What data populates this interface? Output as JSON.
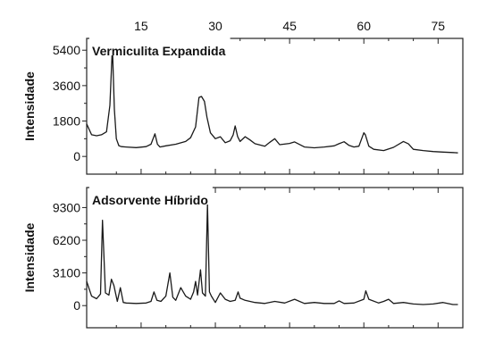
{
  "chart_data": [
    {
      "type": "line",
      "title": "Vermiculita Expandida",
      "xlabel": "",
      "ylabel": "Intensidade",
      "xlim": [
        4,
        80
      ],
      "ylim": [
        -900,
        6000
      ],
      "x_ticks": [
        "15",
        "30",
        "45",
        "60",
        "75"
      ],
      "y_ticks": [
        "0",
        "1800",
        "3600",
        "5400"
      ],
      "series": [
        {
          "x": [
            4,
            5,
            6,
            7,
            8,
            8.7,
            9.2,
            9.6,
            10.0,
            10.5,
            11,
            12,
            14,
            16,
            17,
            17.8,
            18.3,
            18.8,
            20,
            22,
            24,
            25,
            26,
            26.7,
            27.2,
            27.8,
            28.3,
            29,
            30,
            31,
            32,
            33,
            33.6,
            34,
            34.5,
            35,
            36,
            37,
            38,
            40,
            41,
            42,
            43,
            45,
            46,
            48,
            50,
            52,
            54,
            55,
            56,
            57,
            58,
            59,
            60,
            60.3,
            61,
            62,
            64,
            66,
            68,
            69,
            70,
            72,
            74,
            76,
            78,
            79
          ],
          "y": [
            1650,
            1100,
            1050,
            1100,
            1250,
            2600,
            5600,
            2400,
            900,
            550,
            500,
            480,
            450,
            500,
            620,
            1150,
            620,
            480,
            540,
            620,
            760,
            950,
            1500,
            3000,
            3050,
            2800,
            2000,
            1200,
            900,
            1000,
            700,
            800,
            1100,
            1550,
            1000,
            760,
            1000,
            840,
            650,
            520,
            720,
            900,
            600,
            660,
            740,
            480,
            440,
            480,
            540,
            650,
            750,
            560,
            480,
            520,
            1200,
            1100,
            520,
            360,
            300,
            460,
            760,
            640,
            360,
            300,
            250,
            220,
            200,
            180
          ]
        }
      ]
    },
    {
      "type": "line",
      "title": "Adsorvente Híbrido",
      "xlabel": "",
      "ylabel": "Intensidade",
      "xlim": [
        4,
        80
      ],
      "ylim": [
        -2100,
        11200
      ],
      "x_ticks": [
        "15",
        "30",
        "45",
        "60",
        "75"
      ],
      "y_ticks": [
        "0",
        "3100",
        "6200",
        "9300"
      ],
      "series": [
        {
          "x": [
            4,
            5,
            6,
            6.8,
            7.2,
            7.8,
            8.5,
            9,
            9.5,
            10.2,
            10.8,
            11.4,
            12,
            14,
            16,
            17,
            17.6,
            18.2,
            19,
            20,
            20.8,
            21.4,
            22,
            23,
            24,
            25,
            25.6,
            26,
            26.4,
            27,
            27.4,
            28,
            28.4,
            28.8,
            29.2,
            30,
            31,
            32,
            33,
            34,
            34.6,
            35,
            36,
            38,
            40,
            42,
            44,
            46,
            48,
            50,
            52,
            54,
            55,
            56,
            58,
            60,
            60.4,
            61,
            63,
            64,
            65,
            66,
            68,
            70,
            72,
            74,
            76,
            78,
            79
          ],
          "y": [
            2300,
            900,
            650,
            1100,
            8100,
            1200,
            1000,
            2500,
            1900,
            400,
            1700,
            300,
            250,
            200,
            250,
            400,
            1300,
            500,
            400,
            900,
            3100,
            800,
            500,
            1700,
            900,
            600,
            1300,
            2300,
            1000,
            3400,
            1200,
            900,
            9600,
            1300,
            900,
            300,
            1200,
            600,
            400,
            500,
            1300,
            700,
            500,
            300,
            200,
            400,
            250,
            600,
            200,
            300,
            200,
            200,
            450,
            200,
            250,
            600,
            1400,
            600,
            250,
            400,
            600,
            200,
            300,
            150,
            100,
            150,
            300,
            100,
            100
          ]
        }
      ]
    }
  ]
}
